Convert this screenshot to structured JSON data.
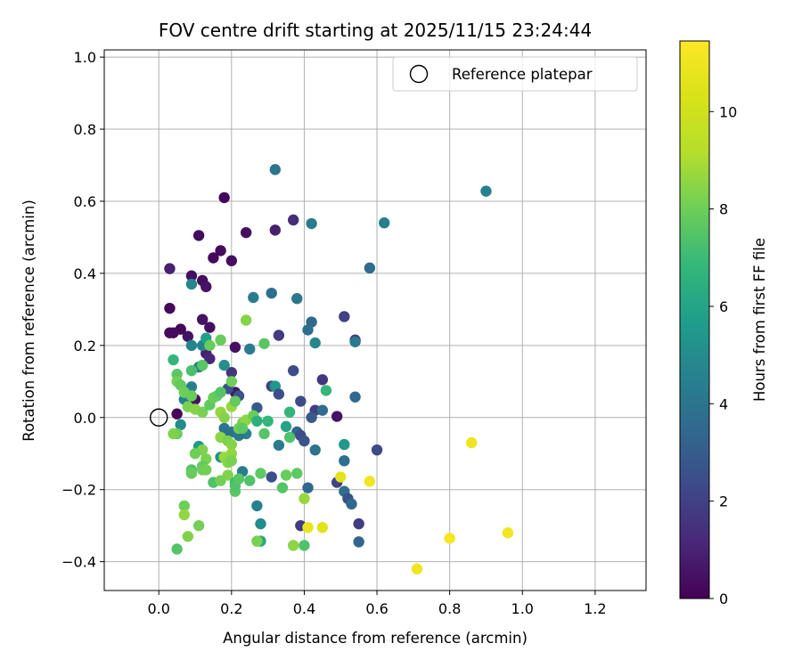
{
  "chart_data": {
    "type": "scatter",
    "title": "FOV centre drift starting at 2025/11/15 23:24:44",
    "xlabel": "Angular distance from reference (arcmin)",
    "ylabel": "Rotation from reference (arcmin)",
    "xlim": [
      -0.15,
      1.34
    ],
    "ylim": [
      -0.48,
      1.02
    ],
    "xticks": [
      0.0,
      0.2,
      0.4,
      0.6,
      0.8,
      1.0,
      1.2
    ],
    "xtick_labels": [
      "0.0",
      "0.2",
      "0.4",
      "0.6",
      "0.8",
      "1.0",
      "1.2"
    ],
    "yticks": [
      -0.4,
      -0.2,
      0.0,
      0.2,
      0.4,
      0.6,
      0.8,
      1.0
    ],
    "ytick_labels": [
      "−0.4",
      "−0.2",
      "0.0",
      "0.2",
      "0.4",
      "0.6",
      "0.8",
      "1.0"
    ],
    "grid": true,
    "legend": {
      "position": "top-right",
      "entries": [
        "Reference platepar"
      ]
    },
    "reference_point": {
      "label": "Reference platepar",
      "x": 0.0,
      "y": 0.0
    },
    "colorbar": {
      "label": "Hours from first FF file",
      "range": [
        0,
        11.45
      ],
      "ticks": [
        0,
        2,
        4,
        6,
        8,
        10
      ],
      "tick_labels": [
        "0",
        "2",
        "4",
        "6",
        "8",
        "10"
      ],
      "colormap": "viridis"
    },
    "points": [
      {
        "x": 0.18,
        "y": 0.61,
        "h": 0.2
      },
      {
        "x": 0.11,
        "y": 0.505,
        "h": 0.3
      },
      {
        "x": 0.24,
        "y": 0.513,
        "h": 0.4
      },
      {
        "x": 0.32,
        "y": 0.52,
        "h": 0.9
      },
      {
        "x": 0.37,
        "y": 0.548,
        "h": 1.3
      },
      {
        "x": 0.17,
        "y": 0.463,
        "h": 0.3
      },
      {
        "x": 0.15,
        "y": 0.443,
        "h": 0.2
      },
      {
        "x": 0.2,
        "y": 0.435,
        "h": 0.4
      },
      {
        "x": 0.03,
        "y": 0.413,
        "h": 0.9
      },
      {
        "x": 0.09,
        "y": 0.393,
        "h": 0.4
      },
      {
        "x": 0.12,
        "y": 0.38,
        "h": 0.3
      },
      {
        "x": 0.13,
        "y": 0.363,
        "h": 0.5
      },
      {
        "x": 0.03,
        "y": 0.303,
        "h": 0.2
      },
      {
        "x": 0.12,
        "y": 0.272,
        "h": 0.5
      },
      {
        "x": 0.14,
        "y": 0.25,
        "h": 0.4
      },
      {
        "x": 0.06,
        "y": 0.245,
        "h": 0.2
      },
      {
        "x": 0.03,
        "y": 0.235,
        "h": 0.3
      },
      {
        "x": 0.04,
        "y": 0.235,
        "h": 0.3
      },
      {
        "x": 0.08,
        "y": 0.225,
        "h": 0.5
      },
      {
        "x": 0.21,
        "y": 0.195,
        "h": 0.4
      },
      {
        "x": 0.13,
        "y": 0.178,
        "h": 0.9
      },
      {
        "x": 0.14,
        "y": 0.163,
        "h": 1.1
      },
      {
        "x": 0.2,
        "y": 0.125,
        "h": 1.6
      },
      {
        "x": 0.21,
        "y": 0.07,
        "h": 0.6
      },
      {
        "x": 0.1,
        "y": 0.05,
        "h": 0.5
      },
      {
        "x": 0.05,
        "y": 0.01,
        "h": 0.2
      },
      {
        "x": 0.32,
        "y": 0.688,
        "h": 4.0
      },
      {
        "x": 0.42,
        "y": 0.538,
        "h": 4.3
      },
      {
        "x": 0.62,
        "y": 0.54,
        "h": 4.4
      },
      {
        "x": 0.9,
        "y": 0.628,
        "h": 4.5
      },
      {
        "x": 0.58,
        "y": 0.415,
        "h": 3.6
      },
      {
        "x": 0.26,
        "y": 0.333,
        "h": 4.3
      },
      {
        "x": 0.31,
        "y": 0.345,
        "h": 3.7
      },
      {
        "x": 0.38,
        "y": 0.33,
        "h": 4.1
      },
      {
        "x": 0.42,
        "y": 0.265,
        "h": 3.5
      },
      {
        "x": 0.51,
        "y": 0.28,
        "h": 2.0
      },
      {
        "x": 0.41,
        "y": 0.243,
        "h": 3.8
      },
      {
        "x": 0.54,
        "y": 0.215,
        "h": 1.7
      },
      {
        "x": 0.54,
        "y": 0.21,
        "h": 4.2
      },
      {
        "x": 0.43,
        "y": 0.207,
        "h": 4.8
      },
      {
        "x": 0.33,
        "y": 0.228,
        "h": 1.8
      },
      {
        "x": 0.25,
        "y": 0.19,
        "h": 4.3
      },
      {
        "x": 0.37,
        "y": 0.13,
        "h": 2.4
      },
      {
        "x": 0.45,
        "y": 0.105,
        "h": 1.6
      },
      {
        "x": 0.18,
        "y": 0.145,
        "h": 5.1
      },
      {
        "x": 0.31,
        "y": 0.087,
        "h": 2.0
      },
      {
        "x": 0.32,
        "y": 0.087,
        "h": 5.4
      },
      {
        "x": 0.33,
        "y": 0.065,
        "h": 2.5
      },
      {
        "x": 0.22,
        "y": 0.06,
        "h": 2.7
      },
      {
        "x": 0.19,
        "y": 0.08,
        "h": 2.6
      },
      {
        "x": 0.39,
        "y": 0.045,
        "h": 2.4
      },
      {
        "x": 0.43,
        "y": 0.02,
        "h": 1.9
      },
      {
        "x": 0.45,
        "y": 0.02,
        "h": 3.6
      },
      {
        "x": 0.42,
        "y": 0.0,
        "h": 3.0
      },
      {
        "x": 0.49,
        "y": 0.003,
        "h": 0.5
      },
      {
        "x": 0.27,
        "y": 0.027,
        "h": 2.9
      },
      {
        "x": 0.54,
        "y": 0.057,
        "h": 3.5
      },
      {
        "x": 0.38,
        "y": -0.04,
        "h": 3.3
      },
      {
        "x": 0.39,
        "y": -0.05,
        "h": 2.4
      },
      {
        "x": 0.4,
        "y": -0.065,
        "h": 2.7
      },
      {
        "x": 0.33,
        "y": -0.077,
        "h": 4.3
      },
      {
        "x": 0.43,
        "y": -0.09,
        "h": 3.9
      },
      {
        "x": 0.51,
        "y": -0.075,
        "h": 5.5
      },
      {
        "x": 0.51,
        "y": -0.12,
        "h": 3.8
      },
      {
        "x": 0.6,
        "y": -0.09,
        "h": 2.3
      },
      {
        "x": 0.31,
        "y": -0.165,
        "h": 2.5
      },
      {
        "x": 0.41,
        "y": -0.195,
        "h": 3.5
      },
      {
        "x": 0.49,
        "y": -0.18,
        "h": 2.1
      },
      {
        "x": 0.51,
        "y": -0.205,
        "h": 3.7
      },
      {
        "x": 0.52,
        "y": -0.225,
        "h": 2.6
      },
      {
        "x": 0.53,
        "y": -0.24,
        "h": 3.5
      },
      {
        "x": 0.55,
        "y": -0.295,
        "h": 1.9
      },
      {
        "x": 0.55,
        "y": -0.345,
        "h": 3.4
      },
      {
        "x": 0.39,
        "y": -0.3,
        "h": 1.8
      },
      {
        "x": 0.27,
        "y": -0.245,
        "h": 4.5
      },
      {
        "x": 0.28,
        "y": -0.295,
        "h": 5.0
      },
      {
        "x": 0.28,
        "y": -0.343,
        "h": 6.2
      },
      {
        "x": 0.23,
        "y": -0.15,
        "h": 4.3
      },
      {
        "x": 0.24,
        "y": -0.045,
        "h": 4.5
      },
      {
        "x": 0.2,
        "y": -0.04,
        "h": 4.2
      },
      {
        "x": 0.18,
        "y": -0.03,
        "h": 4.0
      },
      {
        "x": 0.19,
        "y": -0.045,
        "h": 3.8
      },
      {
        "x": 0.22,
        "y": -0.05,
        "h": 4.1
      },
      {
        "x": 0.09,
        "y": 0.37,
        "h": 4.8
      },
      {
        "x": 0.09,
        "y": 0.2,
        "h": 4.7
      },
      {
        "x": 0.12,
        "y": 0.2,
        "h": 4.6
      },
      {
        "x": 0.11,
        "y": 0.14,
        "h": 4.5
      },
      {
        "x": 0.09,
        "y": 0.085,
        "h": 4.4
      },
      {
        "x": 0.07,
        "y": 0.05,
        "h": 4.6
      },
      {
        "x": 0.06,
        "y": -0.02,
        "h": 4.9
      },
      {
        "x": 0.11,
        "y": -0.08,
        "h": 5.6
      },
      {
        "x": 0.17,
        "y": -0.11,
        "h": 5.2
      },
      {
        "x": 0.13,
        "y": 0.22,
        "h": 5.8
      },
      {
        "x": 0.04,
        "y": 0.16,
        "h": 6.8
      },
      {
        "x": 0.24,
        "y": 0.27,
        "h": 8.4
      },
      {
        "x": 0.17,
        "y": 0.215,
        "h": 7.9
      },
      {
        "x": 0.29,
        "y": 0.205,
        "h": 7.6
      },
      {
        "x": 0.14,
        "y": 0.2,
        "h": 7.9
      },
      {
        "x": 0.09,
        "y": 0.13,
        "h": 7.3
      },
      {
        "x": 0.12,
        "y": 0.145,
        "h": 7.6
      },
      {
        "x": 0.05,
        "y": 0.12,
        "h": 7.6
      },
      {
        "x": 0.05,
        "y": 0.1,
        "h": 8.1
      },
      {
        "x": 0.06,
        "y": 0.09,
        "h": 7.8
      },
      {
        "x": 0.07,
        "y": 0.07,
        "h": 8.0
      },
      {
        "x": 0.09,
        "y": 0.06,
        "h": 7.9
      },
      {
        "x": 0.08,
        "y": 0.03,
        "h": 8.2
      },
      {
        "x": 0.1,
        "y": 0.023,
        "h": 8.4
      },
      {
        "x": 0.12,
        "y": 0.015,
        "h": 8.2
      },
      {
        "x": 0.14,
        "y": 0.035,
        "h": 7.7
      },
      {
        "x": 0.15,
        "y": 0.055,
        "h": 8.0
      },
      {
        "x": 0.16,
        "y": 0.06,
        "h": 7.8
      },
      {
        "x": 0.17,
        "y": 0.07,
        "h": 7.5
      },
      {
        "x": 0.2,
        "y": 0.1,
        "h": 8.0
      },
      {
        "x": 0.2,
        "y": 0.03,
        "h": 8.7
      },
      {
        "x": 0.21,
        "y": 0.045,
        "h": 7.8
      },
      {
        "x": 0.17,
        "y": 0.015,
        "h": 8.6
      },
      {
        "x": 0.18,
        "y": 0.0,
        "h": 8.4
      },
      {
        "x": 0.23,
        "y": -0.015,
        "h": 8.2
      },
      {
        "x": 0.24,
        "y": -0.007,
        "h": 8.5
      },
      {
        "x": 0.26,
        "y": 0.005,
        "h": 7.9
      },
      {
        "x": 0.27,
        "y": -0.01,
        "h": 6.5
      },
      {
        "x": 0.3,
        "y": -0.01,
        "h": 6.8
      },
      {
        "x": 0.36,
        "y": 0.015,
        "h": 6.8
      },
      {
        "x": 0.35,
        "y": -0.025,
        "h": 6.0
      },
      {
        "x": 0.36,
        "y": -0.055,
        "h": 7.4
      },
      {
        "x": 0.46,
        "y": 0.075,
        "h": 6.8
      },
      {
        "x": 0.05,
        "y": -0.045,
        "h": 7.9
      },
      {
        "x": 0.17,
        "y": -0.055,
        "h": 8.5
      },
      {
        "x": 0.19,
        "y": -0.065,
        "h": 8.2
      },
      {
        "x": 0.2,
        "y": -0.075,
        "h": 8.4
      },
      {
        "x": 0.22,
        "y": -0.03,
        "h": 8.1
      },
      {
        "x": 0.23,
        "y": -0.03,
        "h": 7.7
      },
      {
        "x": 0.12,
        "y": -0.09,
        "h": 8.3
      },
      {
        "x": 0.1,
        "y": -0.1,
        "h": 8.0
      },
      {
        "x": 0.13,
        "y": -0.115,
        "h": 8.2
      },
      {
        "x": 0.12,
        "y": -0.135,
        "h": 7.8
      },
      {
        "x": 0.09,
        "y": -0.145,
        "h": 7.5
      },
      {
        "x": 0.09,
        "y": -0.155,
        "h": 7.9
      },
      {
        "x": 0.12,
        "y": -0.145,
        "h": 8.0
      },
      {
        "x": 0.13,
        "y": -0.145,
        "h": 8.1
      },
      {
        "x": 0.15,
        "y": -0.18,
        "h": 7.4
      },
      {
        "x": 0.17,
        "y": -0.175,
        "h": 8.1
      },
      {
        "x": 0.19,
        "y": -0.16,
        "h": 8.3
      },
      {
        "x": 0.18,
        "y": -0.11,
        "h": 8.7
      },
      {
        "x": 0.19,
        "y": -0.125,
        "h": 8.4
      },
      {
        "x": 0.2,
        "y": -0.1,
        "h": 8.6
      },
      {
        "x": 0.2,
        "y": -0.12,
        "h": 8.2
      },
      {
        "x": 0.21,
        "y": -0.18,
        "h": 7.0
      },
      {
        "x": 0.21,
        "y": -0.205,
        "h": 7.6
      },
      {
        "x": 0.21,
        "y": -0.19,
        "h": 7.4
      },
      {
        "x": 0.22,
        "y": -0.17,
        "h": 7.6
      },
      {
        "x": 0.29,
        "y": -0.045,
        "h": 7.5
      },
      {
        "x": 0.25,
        "y": -0.175,
        "h": 7.4
      },
      {
        "x": 0.28,
        "y": -0.155,
        "h": 7.7
      },
      {
        "x": 0.34,
        "y": -0.195,
        "h": 7.5
      },
      {
        "x": 0.35,
        "y": -0.16,
        "h": 7.9
      },
      {
        "x": 0.38,
        "y": -0.155,
        "h": 7.7
      },
      {
        "x": 0.4,
        "y": -0.225,
        "h": 8.7
      },
      {
        "x": 0.37,
        "y": -0.355,
        "h": 8.5
      },
      {
        "x": 0.4,
        "y": -0.355,
        "h": 7.4
      },
      {
        "x": 0.27,
        "y": -0.343,
        "h": 8.2
      },
      {
        "x": 0.07,
        "y": -0.245,
        "h": 8.0
      },
      {
        "x": 0.07,
        "y": -0.27,
        "h": 8.6
      },
      {
        "x": 0.08,
        "y": -0.33,
        "h": 8.3
      },
      {
        "x": 0.11,
        "y": -0.3,
        "h": 8.1
      },
      {
        "x": 0.05,
        "y": -0.365,
        "h": 7.5
      },
      {
        "x": 0.04,
        "y": -0.045,
        "h": 8.3
      },
      {
        "x": 0.41,
        "y": -0.305,
        "h": 10.8
      },
      {
        "x": 0.45,
        "y": -0.305,
        "h": 10.6
      },
      {
        "x": 0.5,
        "y": -0.165,
        "h": 10.7
      },
      {
        "x": 0.58,
        "y": -0.177,
        "h": 11.1
      },
      {
        "x": 0.86,
        "y": -0.07,
        "h": 11.0
      },
      {
        "x": 0.8,
        "y": -0.335,
        "h": 11.2
      },
      {
        "x": 0.96,
        "y": -0.32,
        "h": 11.1
      },
      {
        "x": 0.71,
        "y": -0.42,
        "h": 11.0
      }
    ]
  }
}
